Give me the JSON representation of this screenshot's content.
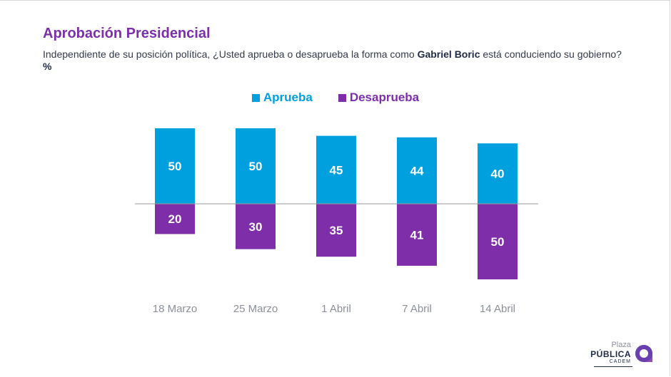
{
  "header": {
    "title": "Aprobación Presidencial",
    "subtitle_pre": "Independiente de su posición política, ¿Usted aprueba o desaprueba la forma como ",
    "subtitle_bold": "Gabriel Boric",
    "subtitle_post": " está conduciendo su gobierno? ",
    "subtitle_unit": "%"
  },
  "colors": {
    "aprueba": "#00a0df",
    "desaprueba": "#7e2ea8",
    "title": "#7b2fa8"
  },
  "chart_data": {
    "type": "bar",
    "categories": [
      "18 Marzo",
      "25 Marzo",
      "1 Abril",
      "7 Abril",
      "14 Abril"
    ],
    "series": [
      {
        "name": "Aprueba",
        "values": [
          50,
          50,
          45,
          44,
          40
        ]
      },
      {
        "name": "Desaprueba",
        "values": [
          20,
          30,
          35,
          41,
          50
        ]
      }
    ],
    "legend_position": "top-center",
    "grid": false,
    "ylim": [
      -50,
      50
    ]
  },
  "logo": {
    "line1": "Plaza",
    "line2": "PÚBLICA",
    "line3": "CADEM"
  }
}
